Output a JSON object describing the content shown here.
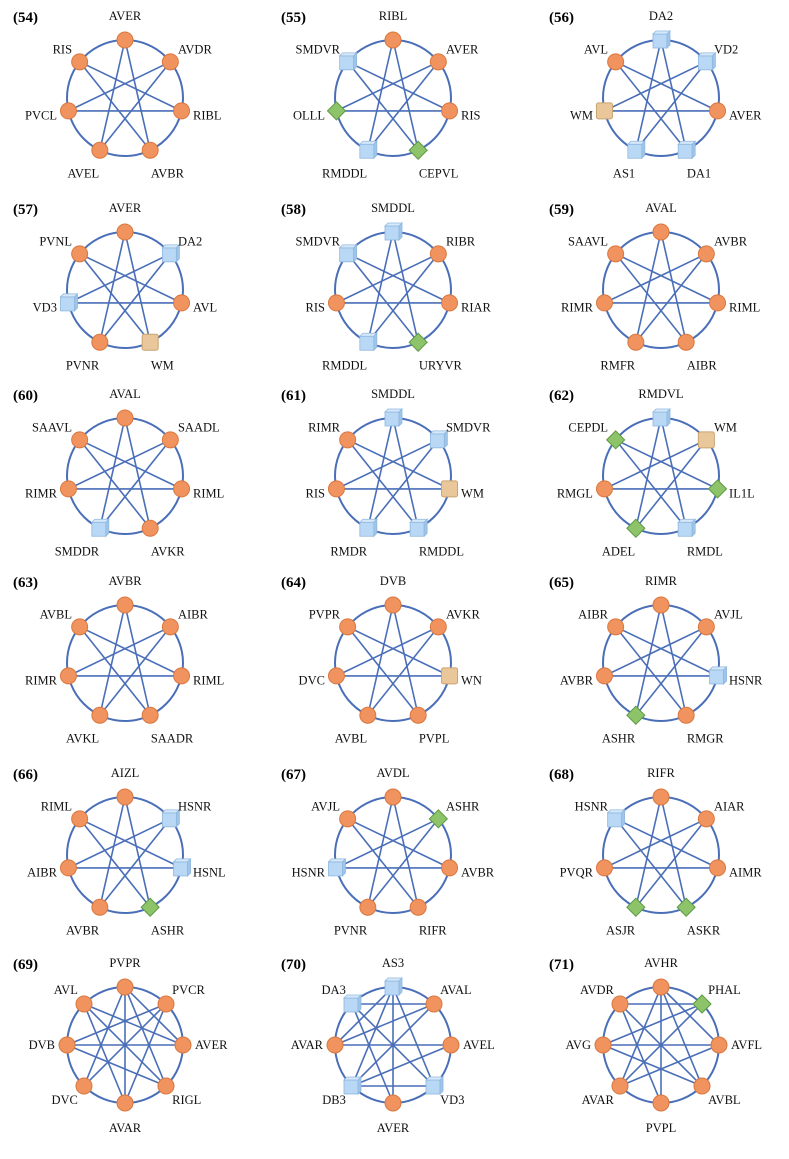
{
  "colors": {
    "edge": "#4a6fb8",
    "neuron": "#f0935e",
    "neuron_stroke": "#d9773f",
    "cube": "#b9d8f5",
    "cube_stroke": "#8fb7de",
    "diamond": "#8dc46a",
    "diamond_stroke": "#5f9a44",
    "square": "#e9c79a",
    "square_stroke": "#c9a471"
  },
  "shape_legend": {
    "circle": "neuron node (orange circle)",
    "cube": "cube node (light blue)",
    "diamond": "diamond node (green)",
    "square": "square node (tan)"
  },
  "panels": [
    {
      "id": "(54)",
      "nodes": [
        [
          "AVER",
          "circle"
        ],
        [
          "AVDR",
          "circle"
        ],
        [
          "RIBL",
          "circle"
        ],
        [
          "AVBR",
          "circle"
        ],
        [
          "AVEL",
          "circle"
        ],
        [
          "PVCL",
          "circle"
        ],
        [
          "RIS",
          "circle"
        ]
      ],
      "edges": [
        [
          0,
          3
        ],
        [
          0,
          4
        ],
        [
          1,
          4
        ],
        [
          1,
          5
        ],
        [
          2,
          5
        ],
        [
          2,
          6
        ],
        [
          3,
          6
        ]
      ]
    },
    {
      "id": "(55)",
      "nodes": [
        [
          "RIBL",
          "circle"
        ],
        [
          "AVER",
          "circle"
        ],
        [
          "RIS",
          "circle"
        ],
        [
          "CEPVL",
          "diamond"
        ],
        [
          "RMDDL",
          "cube"
        ],
        [
          "OLLL",
          "diamond"
        ],
        [
          "SMDVR",
          "cube"
        ]
      ],
      "edges": [
        [
          0,
          3
        ],
        [
          0,
          4
        ],
        [
          1,
          4
        ],
        [
          1,
          5
        ],
        [
          2,
          5
        ],
        [
          2,
          6
        ],
        [
          3,
          6
        ]
      ]
    },
    {
      "id": "(56)",
      "nodes": [
        [
          "DA2",
          "cube"
        ],
        [
          "VD2",
          "cube"
        ],
        [
          "AVER",
          "circle"
        ],
        [
          "DA1",
          "cube"
        ],
        [
          "AS1",
          "cube"
        ],
        [
          "WM",
          "square"
        ],
        [
          "AVL",
          "circle"
        ]
      ],
      "edges": [
        [
          0,
          3
        ],
        [
          0,
          4
        ],
        [
          1,
          4
        ],
        [
          1,
          5
        ],
        [
          2,
          5
        ],
        [
          2,
          6
        ],
        [
          3,
          6
        ]
      ]
    },
    {
      "id": "(57)",
      "nodes": [
        [
          "AVER",
          "circle"
        ],
        [
          "DA2",
          "cube"
        ],
        [
          "AVL",
          "circle"
        ],
        [
          "WM",
          "square"
        ],
        [
          "PVNR",
          "circle"
        ],
        [
          "VD3",
          "cube"
        ],
        [
          "PVNL",
          "circle"
        ]
      ],
      "edges": [
        [
          0,
          3
        ],
        [
          0,
          4
        ],
        [
          1,
          4
        ],
        [
          1,
          5
        ],
        [
          2,
          5
        ],
        [
          2,
          6
        ],
        [
          3,
          6
        ]
      ]
    },
    {
      "id": "(58)",
      "nodes": [
        [
          "SMDDL",
          "cube"
        ],
        [
          "RIBR",
          "circle"
        ],
        [
          "RIAR",
          "circle"
        ],
        [
          "URYVR",
          "diamond"
        ],
        [
          "RMDDL",
          "cube"
        ],
        [
          "RIS",
          "circle"
        ],
        [
          "SMDVR",
          "cube"
        ]
      ],
      "edges": [
        [
          0,
          3
        ],
        [
          0,
          4
        ],
        [
          1,
          4
        ],
        [
          1,
          5
        ],
        [
          2,
          5
        ],
        [
          2,
          6
        ],
        [
          3,
          6
        ]
      ]
    },
    {
      "id": "(59)",
      "nodes": [
        [
          "AVAL",
          "circle"
        ],
        [
          "AVBR",
          "circle"
        ],
        [
          "RIML",
          "circle"
        ],
        [
          "AIBR",
          "circle"
        ],
        [
          "RMFR",
          "circle"
        ],
        [
          "RIMR",
          "circle"
        ],
        [
          "SAAVL",
          "circle"
        ]
      ],
      "edges": [
        [
          0,
          3
        ],
        [
          0,
          4
        ],
        [
          1,
          4
        ],
        [
          1,
          5
        ],
        [
          2,
          5
        ],
        [
          2,
          6
        ],
        [
          3,
          6
        ]
      ]
    },
    {
      "id": "(60)",
      "nodes": [
        [
          "AVAL",
          "circle"
        ],
        [
          "SAADL",
          "circle"
        ],
        [
          "RIML",
          "circle"
        ],
        [
          "AVKR",
          "circle"
        ],
        [
          "SMDDR",
          "cube"
        ],
        [
          "RIMR",
          "circle"
        ],
        [
          "SAAVL",
          "circle"
        ]
      ],
      "edges": [
        [
          0,
          3
        ],
        [
          0,
          4
        ],
        [
          1,
          4
        ],
        [
          1,
          5
        ],
        [
          2,
          5
        ],
        [
          2,
          6
        ],
        [
          3,
          6
        ]
      ]
    },
    {
      "id": "(61)",
      "nodes": [
        [
          "SMDDL",
          "cube"
        ],
        [
          "SMDVR",
          "cube"
        ],
        [
          "WM",
          "square"
        ],
        [
          "RMDDL",
          "cube"
        ],
        [
          "RMDR",
          "cube"
        ],
        [
          "RIS",
          "circle"
        ],
        [
          "RIMR",
          "circle"
        ]
      ],
      "edges": [
        [
          0,
          3
        ],
        [
          0,
          4
        ],
        [
          1,
          4
        ],
        [
          1,
          5
        ],
        [
          2,
          5
        ],
        [
          2,
          6
        ],
        [
          3,
          6
        ]
      ]
    },
    {
      "id": "(62)",
      "nodes": [
        [
          "RMDVL",
          "cube"
        ],
        [
          "WM",
          "square"
        ],
        [
          "IL1L",
          "diamond"
        ],
        [
          "RMDL",
          "cube"
        ],
        [
          "ADEL",
          "diamond"
        ],
        [
          "RMGL",
          "circle"
        ],
        [
          "CEPDL",
          "diamond"
        ]
      ],
      "edges": [
        [
          0,
          3
        ],
        [
          0,
          4
        ],
        [
          1,
          4
        ],
        [
          1,
          5
        ],
        [
          2,
          5
        ],
        [
          2,
          6
        ],
        [
          3,
          6
        ]
      ]
    },
    {
      "id": "(63)",
      "nodes": [
        [
          "AVBR",
          "circle"
        ],
        [
          "AIBR",
          "circle"
        ],
        [
          "RIML",
          "circle"
        ],
        [
          "SAADR",
          "circle"
        ],
        [
          "AVKL",
          "circle"
        ],
        [
          "RIMR",
          "circle"
        ],
        [
          "AVBL",
          "circle"
        ]
      ],
      "edges": [
        [
          0,
          3
        ],
        [
          0,
          4
        ],
        [
          1,
          4
        ],
        [
          1,
          5
        ],
        [
          2,
          5
        ],
        [
          2,
          6
        ],
        [
          3,
          6
        ]
      ]
    },
    {
      "id": "(64)",
      "nodes": [
        [
          "DVB",
          "circle"
        ],
        [
          "AVKR",
          "circle"
        ],
        [
          "WN",
          "square"
        ],
        [
          "PVPL",
          "circle"
        ],
        [
          "AVBL",
          "circle"
        ],
        [
          "DVC",
          "circle"
        ],
        [
          "PVPR",
          "circle"
        ]
      ],
      "edges": [
        [
          0,
          3
        ],
        [
          0,
          4
        ],
        [
          1,
          4
        ],
        [
          1,
          5
        ],
        [
          2,
          5
        ],
        [
          2,
          6
        ],
        [
          3,
          6
        ]
      ]
    },
    {
      "id": "(65)",
      "nodes": [
        [
          "RIMR",
          "circle"
        ],
        [
          "AVJL",
          "circle"
        ],
        [
          "HSNR",
          "cube"
        ],
        [
          "RMGR",
          "circle"
        ],
        [
          "ASHR",
          "diamond"
        ],
        [
          "AVBR",
          "circle"
        ],
        [
          "AIBR",
          "circle"
        ]
      ],
      "edges": [
        [
          0,
          3
        ],
        [
          0,
          4
        ],
        [
          1,
          4
        ],
        [
          1,
          5
        ],
        [
          2,
          5
        ],
        [
          2,
          6
        ],
        [
          3,
          6
        ]
      ]
    },
    {
      "id": "(66)",
      "nodes": [
        [
          "AIZL",
          "circle"
        ],
        [
          "HSNR",
          "cube"
        ],
        [
          "HSNL",
          "cube"
        ],
        [
          "ASHR",
          "diamond"
        ],
        [
          "AVBR",
          "circle"
        ],
        [
          "AIBR",
          "circle"
        ],
        [
          "RIML",
          "circle"
        ]
      ],
      "edges": [
        [
          0,
          3
        ],
        [
          0,
          4
        ],
        [
          1,
          4
        ],
        [
          1,
          5
        ],
        [
          2,
          5
        ],
        [
          2,
          6
        ],
        [
          3,
          6
        ]
      ]
    },
    {
      "id": "(67)",
      "nodes": [
        [
          "AVDL",
          "circle"
        ],
        [
          "ASHR",
          "diamond"
        ],
        [
          "AVBR",
          "circle"
        ],
        [
          "RIFR",
          "circle"
        ],
        [
          "PVNR",
          "circle"
        ],
        [
          "HSNR",
          "cube"
        ],
        [
          "AVJL",
          "circle"
        ]
      ],
      "edges": [
        [
          0,
          3
        ],
        [
          0,
          4
        ],
        [
          1,
          4
        ],
        [
          1,
          5
        ],
        [
          2,
          5
        ],
        [
          2,
          6
        ],
        [
          3,
          6
        ]
      ]
    },
    {
      "id": "(68)",
      "nodes": [
        [
          "RIFR",
          "circle"
        ],
        [
          "AIAR",
          "circle"
        ],
        [
          "AIMR",
          "circle"
        ],
        [
          "ASKR",
          "diamond"
        ],
        [
          "ASJR",
          "diamond"
        ],
        [
          "PVQR",
          "circle"
        ],
        [
          "HSNR",
          "cube"
        ]
      ],
      "edges": [
        [
          0,
          3
        ],
        [
          0,
          4
        ],
        [
          1,
          4
        ],
        [
          1,
          5
        ],
        [
          2,
          5
        ],
        [
          2,
          6
        ],
        [
          3,
          6
        ]
      ]
    },
    {
      "id": "(69)",
      "nodes": [
        [
          "PVPR",
          "circle"
        ],
        [
          "PVCR",
          "circle"
        ],
        [
          "AVER",
          "circle"
        ],
        [
          "RIGL",
          "circle"
        ],
        [
          "AVAR",
          "circle"
        ],
        [
          "DVC",
          "circle"
        ],
        [
          "DVB",
          "circle"
        ],
        [
          "AVL",
          "circle"
        ]
      ],
      "edges": [
        [
          0,
          3
        ],
        [
          0,
          4
        ],
        [
          0,
          5
        ],
        [
          1,
          4
        ],
        [
          1,
          5
        ],
        [
          1,
          6
        ],
        [
          2,
          6
        ],
        [
          2,
          7
        ],
        [
          3,
          7
        ],
        [
          4,
          7
        ],
        [
          3,
          6
        ],
        [
          0,
          2
        ]
      ]
    },
    {
      "id": "(70)",
      "nodes": [
        [
          "AS3",
          "cube"
        ],
        [
          "AVAL",
          "circle"
        ],
        [
          "AVEL",
          "circle"
        ],
        [
          "VD3",
          "cube"
        ],
        [
          "AVER",
          "circle"
        ],
        [
          "DB3",
          "cube"
        ],
        [
          "AVAR",
          "circle"
        ],
        [
          "DA3",
          "cube"
        ]
      ],
      "edges": [
        [
          0,
          3
        ],
        [
          0,
          4
        ],
        [
          0,
          5
        ],
        [
          1,
          5
        ],
        [
          1,
          6
        ],
        [
          2,
          5
        ],
        [
          2,
          6
        ],
        [
          3,
          7
        ],
        [
          4,
          7
        ],
        [
          1,
          7
        ],
        [
          3,
          5
        ],
        [
          0,
          6
        ]
      ]
    },
    {
      "id": "(71)",
      "nodes": [
        [
          "AVHR",
          "circle"
        ],
        [
          "PHAL",
          "diamond"
        ],
        [
          "AVFL",
          "circle"
        ],
        [
          "AVBL",
          "circle"
        ],
        [
          "PVPL",
          "circle"
        ],
        [
          "AVAR",
          "circle"
        ],
        [
          "AVG",
          "circle"
        ],
        [
          "AVDR",
          "circle"
        ]
      ],
      "edges": [
        [
          0,
          3
        ],
        [
          0,
          4
        ],
        [
          0,
          5
        ],
        [
          1,
          5
        ],
        [
          1,
          6
        ],
        [
          1,
          7
        ],
        [
          2,
          6
        ],
        [
          3,
          6
        ],
        [
          4,
          7
        ],
        [
          0,
          2
        ],
        [
          3,
          7
        ],
        [
          2,
          5
        ]
      ]
    }
  ]
}
